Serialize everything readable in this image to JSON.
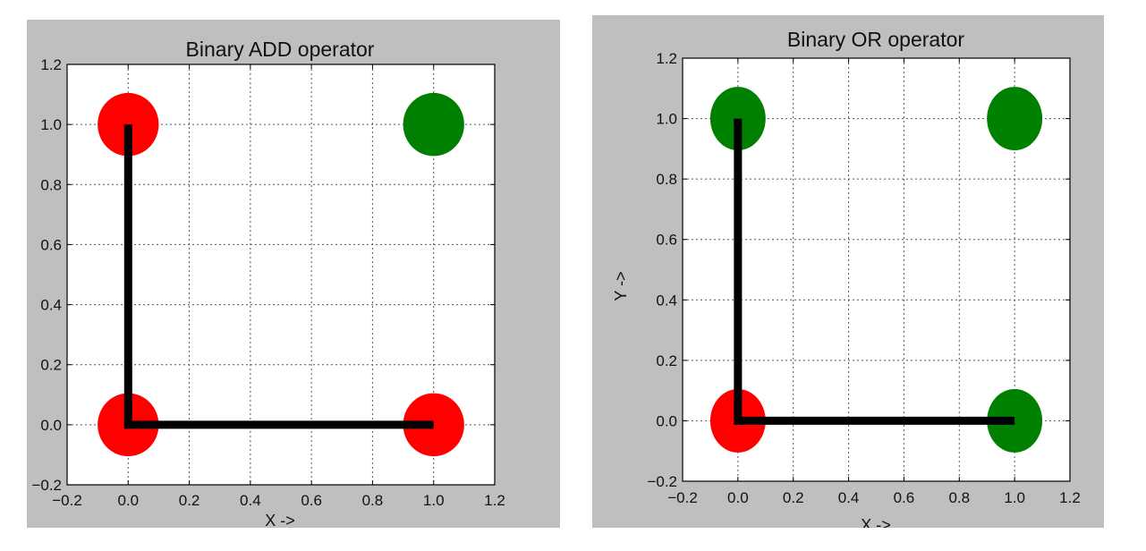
{
  "chart_data": [
    {
      "type": "scatter",
      "title": "Binary ADD operator",
      "xlabel": "X ->",
      "ylabel": "",
      "xlim": [
        -0.2,
        1.2
      ],
      "ylim": [
        -0.2,
        1.2
      ],
      "xticks": [
        "−0.2",
        "0.0",
        "0.2",
        "0.4",
        "0.6",
        "0.8",
        "1.0",
        "1.2"
      ],
      "yticks": [
        "−0.2",
        "0.0",
        "0.2",
        "0.4",
        "0.6",
        "0.8",
        "1.0",
        "1.2"
      ],
      "grid": true,
      "points": [
        {
          "x": 0,
          "y": 0,
          "color": "#ff0000"
        },
        {
          "x": 0,
          "y": 1,
          "color": "#ff0000"
        },
        {
          "x": 1,
          "y": 0,
          "color": "#ff0000"
        },
        {
          "x": 1,
          "y": 1,
          "color": "#008000"
        }
      ],
      "boundary_line": {
        "x": [
          0,
          0,
          1
        ],
        "y": [
          1,
          0,
          0
        ],
        "color": "#000000"
      }
    },
    {
      "type": "scatter",
      "title": "Binary OR operator",
      "xlabel": "X ->",
      "ylabel": "Y ->",
      "xlim": [
        -0.2,
        1.2
      ],
      "ylim": [
        -0.2,
        1.2
      ],
      "xticks": [
        "−0.2",
        "0.0",
        "0.2",
        "0.4",
        "0.6",
        "0.8",
        "1.0",
        "1.2"
      ],
      "yticks": [
        "−0.2",
        "0.0",
        "0.2",
        "0.4",
        "0.6",
        "0.8",
        "1.0",
        "1.2"
      ],
      "grid": true,
      "points": [
        {
          "x": 0,
          "y": 0,
          "color": "#ff0000"
        },
        {
          "x": 0,
          "y": 1,
          "color": "#008000"
        },
        {
          "x": 1,
          "y": 0,
          "color": "#008000"
        },
        {
          "x": 1,
          "y": 1,
          "color": "#008000"
        }
      ],
      "boundary_line": {
        "x": [
          0,
          0,
          1
        ],
        "y": [
          1,
          0,
          0
        ],
        "color": "#000000"
      }
    }
  ]
}
